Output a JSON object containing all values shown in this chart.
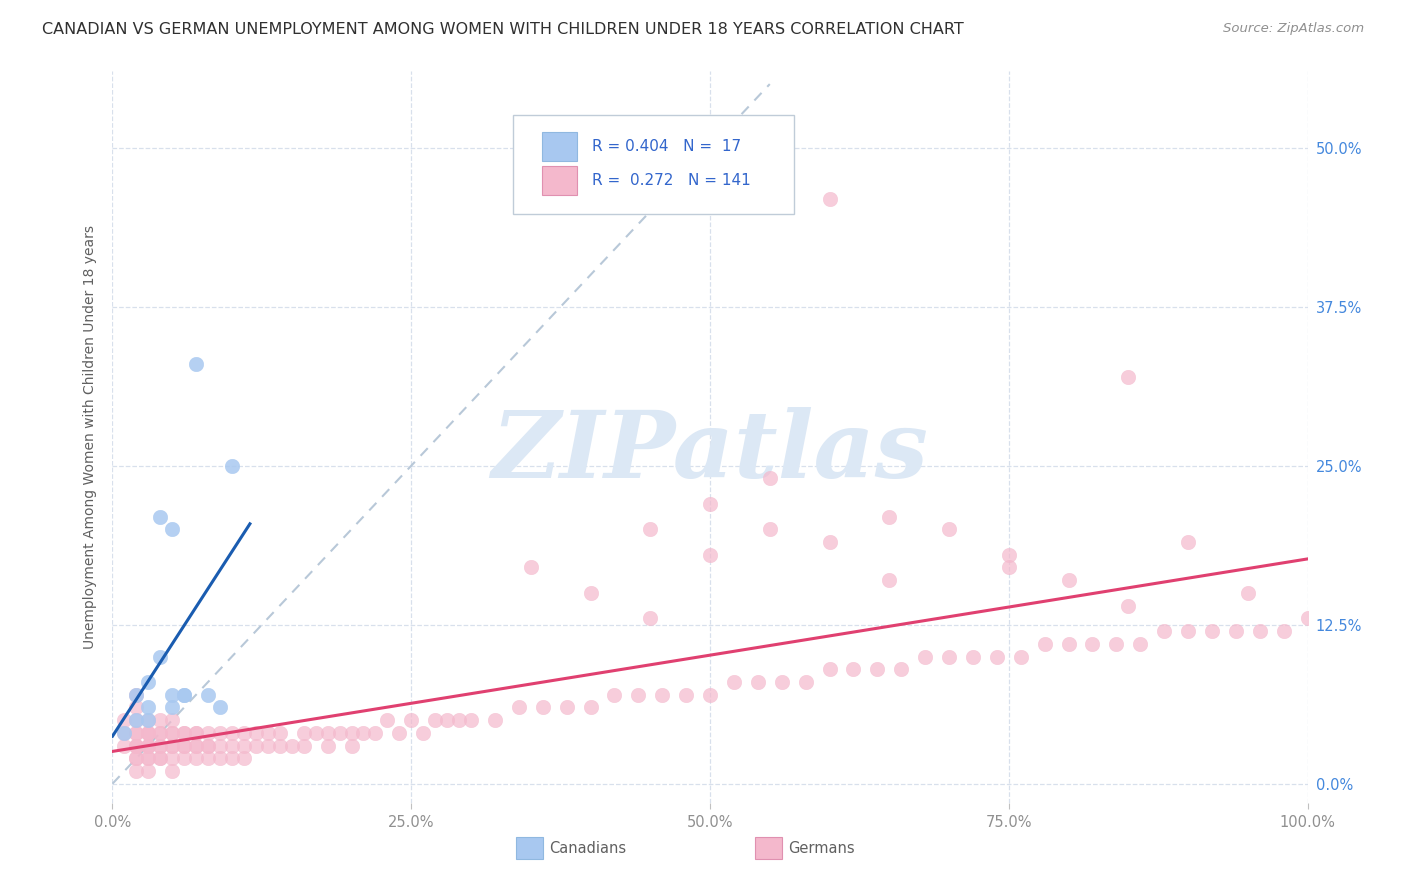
{
  "title": "CANADIAN VS GERMAN UNEMPLOYMENT AMONG WOMEN WITH CHILDREN UNDER 18 YEARS CORRELATION CHART",
  "source": "Source: ZipAtlas.com",
  "ylabel": "Unemployment Among Women with Children Under 18 years",
  "watermark": "ZIPatlas",
  "legend_R_canadian": "0.404",
  "legend_N_canadian": "17",
  "legend_R_german": "0.272",
  "legend_N_german": "141",
  "canadian_color": "#a8c8f0",
  "german_color": "#f4b8cc",
  "canadian_line_color": "#1a5cb0",
  "german_line_color": "#e04070",
  "ref_line_color": "#b8c8d8",
  "title_color": "#303030",
  "source_color": "#909090",
  "axis_label_color": "#606060",
  "tick_label_color": "#909090",
  "right_tick_color": "#4488dd",
  "background_color": "#ffffff",
  "grid_color": "#d8e0ec",
  "legend_text_color": "#3366cc",
  "canadian_scatter_x": [
    0.01,
    0.02,
    0.02,
    0.03,
    0.03,
    0.03,
    0.04,
    0.04,
    0.05,
    0.05,
    0.05,
    0.06,
    0.06,
    0.07,
    0.08,
    0.09,
    0.1
  ],
  "canadian_scatter_y": [
    0.04,
    0.05,
    0.07,
    0.05,
    0.08,
    0.06,
    0.1,
    0.21,
    0.06,
    0.07,
    0.2,
    0.07,
    0.07,
    0.33,
    0.07,
    0.06,
    0.25
  ],
  "german_scatter_x": [
    0.01,
    0.01,
    0.01,
    0.02,
    0.02,
    0.02,
    0.02,
    0.02,
    0.02,
    0.02,
    0.02,
    0.02,
    0.02,
    0.02,
    0.03,
    0.03,
    0.03,
    0.03,
    0.03,
    0.03,
    0.03,
    0.03,
    0.03,
    0.03,
    0.04,
    0.04,
    0.04,
    0.04,
    0.04,
    0.04,
    0.04,
    0.05,
    0.05,
    0.05,
    0.05,
    0.05,
    0.05,
    0.05,
    0.06,
    0.06,
    0.06,
    0.06,
    0.06,
    0.07,
    0.07,
    0.07,
    0.07,
    0.07,
    0.08,
    0.08,
    0.08,
    0.08,
    0.09,
    0.09,
    0.09,
    0.1,
    0.1,
    0.1,
    0.11,
    0.11,
    0.11,
    0.12,
    0.12,
    0.13,
    0.13,
    0.14,
    0.14,
    0.15,
    0.16,
    0.16,
    0.17,
    0.18,
    0.18,
    0.19,
    0.2,
    0.2,
    0.21,
    0.22,
    0.23,
    0.24,
    0.25,
    0.26,
    0.27,
    0.28,
    0.29,
    0.3,
    0.32,
    0.34,
    0.36,
    0.38,
    0.4,
    0.42,
    0.44,
    0.46,
    0.48,
    0.5,
    0.52,
    0.54,
    0.56,
    0.58,
    0.6,
    0.62,
    0.64,
    0.66,
    0.68,
    0.7,
    0.72,
    0.74,
    0.76,
    0.78,
    0.8,
    0.82,
    0.84,
    0.86,
    0.88,
    0.9,
    0.92,
    0.94,
    0.96,
    0.98,
    1.0,
    0.6,
    0.5,
    0.45,
    0.55,
    0.65,
    0.75,
    0.85,
    0.9,
    0.95,
    0.35,
    0.4,
    0.45,
    0.5,
    0.55,
    0.6,
    0.65,
    0.7,
    0.75,
    0.8,
    0.85
  ],
  "german_scatter_y": [
    0.04,
    0.05,
    0.03,
    0.03,
    0.04,
    0.02,
    0.03,
    0.04,
    0.05,
    0.06,
    0.07,
    0.02,
    0.01,
    0.03,
    0.03,
    0.04,
    0.02,
    0.03,
    0.04,
    0.05,
    0.02,
    0.01,
    0.03,
    0.04,
    0.03,
    0.04,
    0.02,
    0.03,
    0.04,
    0.05,
    0.02,
    0.03,
    0.04,
    0.02,
    0.03,
    0.04,
    0.05,
    0.01,
    0.03,
    0.04,
    0.02,
    0.03,
    0.04,
    0.03,
    0.04,
    0.02,
    0.03,
    0.04,
    0.03,
    0.04,
    0.02,
    0.03,
    0.03,
    0.04,
    0.02,
    0.03,
    0.04,
    0.02,
    0.03,
    0.04,
    0.02,
    0.03,
    0.04,
    0.03,
    0.04,
    0.03,
    0.04,
    0.03,
    0.04,
    0.03,
    0.04,
    0.03,
    0.04,
    0.04,
    0.03,
    0.04,
    0.04,
    0.04,
    0.05,
    0.04,
    0.05,
    0.04,
    0.05,
    0.05,
    0.05,
    0.05,
    0.05,
    0.06,
    0.06,
    0.06,
    0.06,
    0.07,
    0.07,
    0.07,
    0.07,
    0.07,
    0.08,
    0.08,
    0.08,
    0.08,
    0.09,
    0.09,
    0.09,
    0.09,
    0.1,
    0.1,
    0.1,
    0.1,
    0.1,
    0.11,
    0.11,
    0.11,
    0.11,
    0.11,
    0.12,
    0.12,
    0.12,
    0.12,
    0.12,
    0.12,
    0.13,
    0.46,
    0.22,
    0.2,
    0.24,
    0.21,
    0.17,
    0.32,
    0.19,
    0.15,
    0.17,
    0.15,
    0.13,
    0.18,
    0.2,
    0.19,
    0.16,
    0.2,
    0.18,
    0.16,
    0.14
  ]
}
